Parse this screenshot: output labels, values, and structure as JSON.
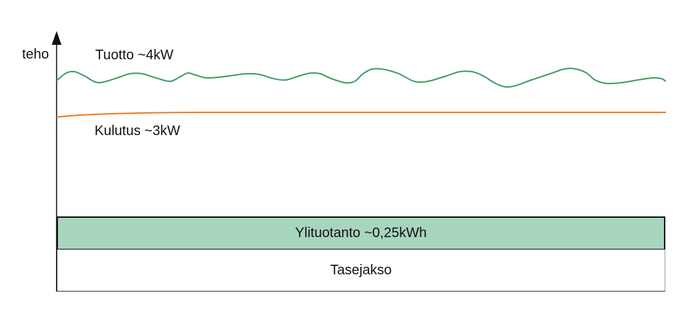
{
  "axis": {
    "y_label": "teho"
  },
  "series": {
    "production": {
      "label": "Tuotto ~4kW",
      "color": "#3f9a62"
    },
    "consumption": {
      "label": "Kulutus ~3kW",
      "color": "#ee7a1b"
    }
  },
  "bands": {
    "surplus": {
      "label": "Ylituotanto ~0,25kWh",
      "color": "#a8d5be"
    },
    "period": {
      "label": "Tasejakso"
    }
  }
}
